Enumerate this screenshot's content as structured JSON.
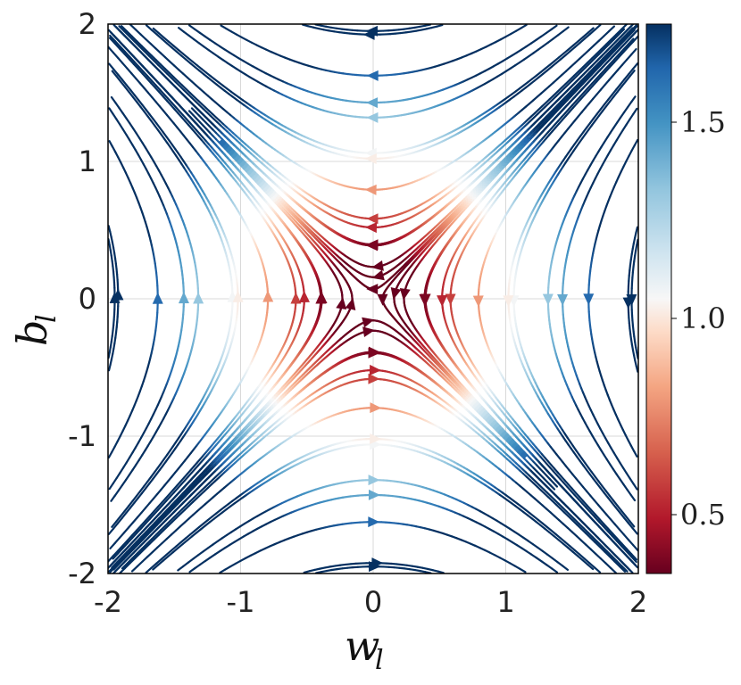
{
  "chart_data": {
    "type": "streamplot",
    "title": "",
    "xlabel": {
      "base": "w",
      "sub": "l"
    },
    "ylabel": {
      "base": "b",
      "sub": "l"
    },
    "xlim": [
      -2,
      2
    ],
    "ylim": [
      -2,
      2
    ],
    "xticks": [
      -2,
      -1,
      0,
      1,
      2
    ],
    "yticks": [
      -2,
      -1,
      0,
      1,
      2
    ],
    "xtick_labels": [
      "-2",
      "-1",
      "0",
      "1",
      "2"
    ],
    "ytick_labels": [
      "-2",
      "-1",
      "0",
      "1",
      "2"
    ],
    "grid": true,
    "vector_field": "dw = -b, db = -w (saddle at origin; flow toward origin along w = b, away along w = -b)",
    "color_metric": "speed sqrt(w^2 + b^2)",
    "colorbar": {
      "colormap": "RdBu",
      "range": [
        0.35,
        1.75
      ],
      "ticks": [
        0.5,
        1.0,
        1.5
      ],
      "tick_labels": [
        "0.5",
        "1.0",
        "1.5"
      ]
    },
    "seeds": [
      {
        "h": 0.05,
        "d": 0.05
      },
      {
        "h": 0.05,
        "d": -0.05
      },
      {
        "h": 0.25,
        "d": 0.05
      },
      {
        "h": -0.25,
        "d": 0.05
      },
      {
        "h": 0.25,
        "d": -0.05
      },
      {
        "h": -0.25,
        "d": -0.05
      },
      {
        "h": 0.45,
        "d": 0.06
      },
      {
        "h": -0.45,
        "d": 0.06
      },
      {
        "h": 0.45,
        "d": -0.06
      },
      {
        "h": -0.45,
        "d": -0.06
      },
      {
        "h": 0.65,
        "d": 0.12
      },
      {
        "h": -0.65,
        "d": 0.12
      },
      {
        "h": 0.65,
        "d": -0.12
      },
      {
        "h": -0.65,
        "d": -0.12
      },
      {
        "h": 0.85,
        "d": 0.2
      },
      {
        "h": -0.85,
        "d": 0.2
      },
      {
        "h": 0.85,
        "d": -0.2
      },
      {
        "h": -0.85,
        "d": -0.2
      },
      {
        "h": 1.05,
        "d": 0.3
      },
      {
        "h": -1.05,
        "d": 0.3
      },
      {
        "h": 1.05,
        "d": -0.3
      },
      {
        "h": -1.05,
        "d": -0.3
      },
      {
        "h": 1.25,
        "d": 0.45
      },
      {
        "h": -1.25,
        "d": 0.45
      },
      {
        "h": 1.25,
        "d": -0.45
      },
      {
        "h": -1.25,
        "d": -0.45
      },
      {
        "h": 1.45,
        "d": 0.6
      },
      {
        "h": -1.45,
        "d": 0.6
      },
      {
        "h": 1.45,
        "d": -0.6
      },
      {
        "h": -1.45,
        "d": -0.6
      },
      {
        "h": 1.65,
        "d": 0.8
      },
      {
        "h": -1.65,
        "d": 0.8
      },
      {
        "h": 1.65,
        "d": -0.8
      },
      {
        "h": -1.65,
        "d": -0.8
      },
      {
        "h": 1.85,
        "d": 1.0
      },
      {
        "h": -1.85,
        "d": 1.0
      },
      {
        "h": 1.85,
        "d": -1.0
      },
      {
        "h": -1.85,
        "d": -1.0
      },
      {
        "h": 0.15,
        "d": 0.5
      },
      {
        "h": -0.15,
        "d": 0.5
      },
      {
        "h": 0.15,
        "d": -0.5
      },
      {
        "h": -0.15,
        "d": -0.5
      },
      {
        "h": 0.15,
        "d": 0.9
      },
      {
        "h": -0.15,
        "d": 0.9
      },
      {
        "h": 0.15,
        "d": -0.9
      },
      {
        "h": -0.15,
        "d": -0.9
      },
      {
        "h": 0.4,
        "d": 1.3
      },
      {
        "h": -0.4,
        "d": 1.3
      },
      {
        "h": 0.4,
        "d": -1.3
      },
      {
        "h": -0.4,
        "d": -1.3
      },
      {
        "h": 0.6,
        "d": 1.7
      },
      {
        "h": -0.6,
        "d": 1.7
      },
      {
        "h": 0.6,
        "d": -1.7
      },
      {
        "h": -0.6,
        "d": -1.7
      },
      {
        "h": 1.0,
        "d": 1.9
      },
      {
        "h": -1.0,
        "d": 1.9
      },
      {
        "h": 1.0,
        "d": -1.9
      },
      {
        "h": -1.0,
        "d": -1.9
      }
    ]
  }
}
